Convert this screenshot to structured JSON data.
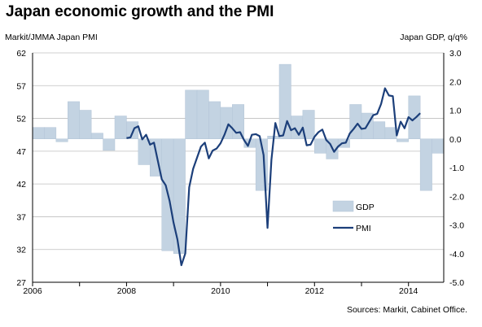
{
  "title": "Japan economic growth and the PMI",
  "left_axis_label": "Markit/JMMA  Japan PMI",
  "right_axis_label": "Japan GDP, q/q%",
  "source": "Sources: Markit, Cabinet Office.",
  "colors": {
    "gdp_fill": "#c3d3e2",
    "pmi_line": "#1c3f7a",
    "grid": "#bfbfbf"
  },
  "chart_data": {
    "type": "bar+line",
    "x_ticks": [
      "2006",
      "2008",
      "2010",
      "2012",
      "2014"
    ],
    "y_left": {
      "range": [
        27,
        62
      ],
      "ticks": [
        "27",
        "32",
        "37",
        "42",
        "47",
        "52",
        "57",
        "62"
      ]
    },
    "y_right": {
      "range": [
        -5.0,
        3.0
      ],
      "ticks": [
        "-5.0",
        "-4.0",
        "-3.0",
        "-2.0",
        "-1.0",
        "0.0",
        "1.0",
        "2.0",
        "3.0"
      ]
    },
    "grid": true,
    "legend": {
      "placement": "center-right",
      "entries": [
        "GDP",
        "PMI"
      ]
    },
    "series": [
      {
        "name": "GDP",
        "type": "bar",
        "axis": "right",
        "x": [
          "2006Q1",
          "2006Q2",
          "2006Q3",
          "2006Q4",
          "2007Q1",
          "2007Q2",
          "2007Q3",
          "2007Q4",
          "2008Q1",
          "2008Q2",
          "2008Q3",
          "2008Q4",
          "2009Q1",
          "2009Q2",
          "2009Q3",
          "2009Q4",
          "2010Q1",
          "2010Q2",
          "2010Q3",
          "2010Q4",
          "2011Q1",
          "2011Q2",
          "2011Q3",
          "2011Q4",
          "2012Q1",
          "2012Q2",
          "2012Q3",
          "2012Q4",
          "2013Q1",
          "2013Q2",
          "2013Q3",
          "2013Q4",
          "2014Q1",
          "2014Q2",
          "2014Q3"
        ],
        "values": [
          0.4,
          0.4,
          -0.1,
          1.3,
          1.0,
          0.2,
          -0.4,
          0.8,
          0.6,
          -0.9,
          -1.3,
          -3.9,
          -4.0,
          1.7,
          1.7,
          1.3,
          1.1,
          1.2,
          -0.3,
          -1.8,
          0.1,
          2.6,
          0.8,
          1.0,
          -0.5,
          -0.7,
          -0.3,
          1.2,
          0.9,
          0.6,
          0.4,
          -0.1,
          1.5,
          -1.8,
          -0.5
        ]
      },
      {
        "name": "PMI",
        "type": "line",
        "axis": "left",
        "x_start": "2008-01",
        "values": [
          49.0,
          49.1,
          50.5,
          50.8,
          48.8,
          49.5,
          48.0,
          48.3,
          45.5,
          42.7,
          41.8,
          39.4,
          36.1,
          33.5,
          29.6,
          31.4,
          41.5,
          44.3,
          46.0,
          47.7,
          48.3,
          45.9,
          47.1,
          47.4,
          48.2,
          49.5,
          51.1,
          50.5,
          49.8,
          49.9,
          48.7,
          47.8,
          49.5,
          49.6,
          49.3,
          46.4,
          35.3,
          45.7,
          51.3,
          49.3,
          49.4,
          51.6,
          50.2,
          50.5,
          49.5,
          50.6,
          47.9,
          48.0,
          49.2,
          49.9,
          50.3,
          48.7,
          48.1,
          46.9,
          47.7,
          48.2,
          48.3,
          49.7,
          50.4,
          51.2,
          50.4,
          50.5,
          51.5,
          52.5,
          52.7,
          54.2,
          56.6,
          55.5,
          55.4,
          49.4,
          51.5,
          50.5,
          52.2,
          51.7,
          52.2,
          52.8
        ]
      }
    ]
  }
}
